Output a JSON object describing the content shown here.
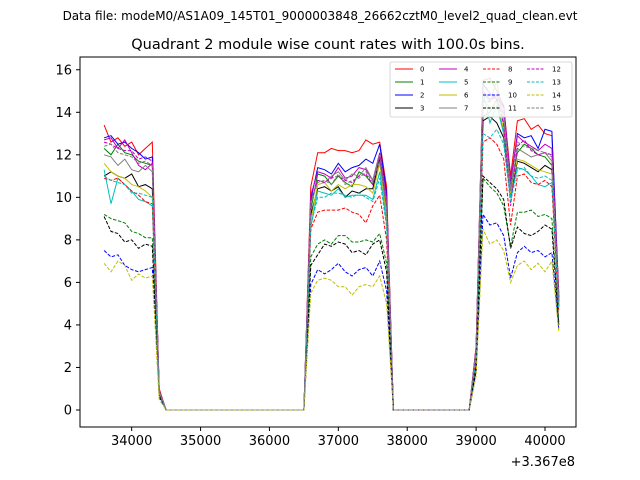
{
  "figure": {
    "suptitle": "Data file: modeM0/AS1A09_145T01_9000003848_26662cztM0_level2_quad_clean.evt",
    "title": "Quadrant 2 module wise count rates with 100.0s bins.",
    "x_offset_label": "+3.367e8"
  },
  "chart_data": {
    "type": "line",
    "title": "Quadrant 2 module wise count rates with 100.0s bins.",
    "xlabel": "",
    "ylabel": "",
    "x_offset": "+3.367e8",
    "xlim": [
      33250,
      40450
    ],
    "ylim": [
      -0.8,
      16.6
    ],
    "xticks": [
      34000,
      35000,
      36000,
      37000,
      38000,
      39000,
      40000
    ],
    "yticks": [
      0,
      2,
      4,
      6,
      8,
      10,
      12,
      14,
      16
    ],
    "grid": false,
    "legend": {
      "placement": "top-right",
      "columns": 4
    },
    "x": [
      33600,
      33700,
      33800,
      33900,
      34000,
      34100,
      34200,
      34300,
      34400,
      34500,
      34600,
      34700,
      34800,
      34900,
      35000,
      35100,
      35200,
      35300,
      35400,
      35500,
      35600,
      35700,
      35800,
      35900,
      36000,
      36100,
      36200,
      36300,
      36400,
      36500,
      36600,
      36700,
      36800,
      36900,
      37000,
      37100,
      37200,
      37300,
      37400,
      37500,
      37600,
      37700,
      37800,
      37900,
      38000,
      38100,
      38200,
      38300,
      38400,
      38500,
      38600,
      38700,
      38800,
      38900,
      39000,
      39100,
      39200,
      39300,
      39400,
      39500,
      39600,
      39700,
      39800,
      39900,
      40000,
      40100,
      40200
    ],
    "series": [
      {
        "name": "0",
        "color": "#ff0000",
        "dash": false,
        "values": [
          13.4,
          12.6,
          12.8,
          12.4,
          12.6,
          12.0,
          12.3,
          12.6,
          1.0,
          0,
          0,
          0,
          0,
          0,
          0,
          0,
          0,
          0,
          0,
          0,
          0,
          0,
          0,
          0,
          0,
          0,
          0,
          0,
          0,
          0,
          10.5,
          12.1,
          12.1,
          12.3,
          12.2,
          12.2,
          12.1,
          12.2,
          12.7,
          12.5,
          12.6,
          10.5,
          0,
          0,
          0,
          0,
          0,
          0,
          0,
          0,
          0,
          0,
          0,
          0,
          3.0,
          15.5,
          15.6,
          15.0,
          14.3,
          11.0,
          13.6,
          13.7,
          13.2,
          13.4,
          13.0,
          12.9,
          5.5
        ]
      },
      {
        "name": "1",
        "color": "#008000",
        "dash": false,
        "values": [
          12.3,
          12.0,
          12.5,
          12.1,
          12.0,
          11.7,
          11.6,
          11.5,
          0.9,
          0,
          0,
          0,
          0,
          0,
          0,
          0,
          0,
          0,
          0,
          0,
          0,
          0,
          0,
          0,
          0,
          0,
          0,
          0,
          0,
          0,
          9.4,
          11.1,
          11.0,
          10.6,
          11.0,
          10.7,
          10.5,
          11.2,
          11.0,
          10.6,
          12.0,
          9.5,
          0,
          0,
          0,
          0,
          0,
          0,
          0,
          0,
          0,
          0,
          0,
          0,
          2.8,
          13.8,
          14.0,
          14.6,
          13.0,
          10.4,
          12.1,
          12.5,
          12.3,
          12.0,
          11.9,
          11.5,
          5.2
        ]
      },
      {
        "name": "2",
        "color": "#0000ff",
        "dash": false,
        "values": [
          12.8,
          12.9,
          12.5,
          12.6,
          12.3,
          12.1,
          11.8,
          11.9,
          0.9,
          0,
          0,
          0,
          0,
          0,
          0,
          0,
          0,
          0,
          0,
          0,
          0,
          0,
          0,
          0,
          0,
          0,
          0,
          0,
          0,
          0,
          9.9,
          11.4,
          11.3,
          11.1,
          11.6,
          11.2,
          11.4,
          11.5,
          11.8,
          11.6,
          12.5,
          10.2,
          0,
          0,
          0,
          0,
          0,
          0,
          0,
          0,
          0,
          0,
          0,
          0,
          2.9,
          15.3,
          14.9,
          14.6,
          14.3,
          10.6,
          13.0,
          12.8,
          12.9,
          12.3,
          13.2,
          13.1,
          5.3
        ]
      },
      {
        "name": "3",
        "color": "#000000",
        "dash": false,
        "values": [
          11.0,
          11.2,
          11.0,
          10.9,
          11.1,
          10.5,
          10.6,
          10.4,
          0.8,
          0,
          0,
          0,
          0,
          0,
          0,
          0,
          0,
          0,
          0,
          0,
          0,
          0,
          0,
          0,
          0,
          0,
          0,
          0,
          0,
          0,
          9.2,
          10.4,
          10.5,
          10.3,
          10.5,
          10.0,
          10.3,
          10.2,
          10.4,
          10.4,
          11.8,
          9.0,
          0,
          0,
          0,
          0,
          0,
          0,
          0,
          0,
          0,
          0,
          0,
          0,
          2.6,
          13.6,
          13.8,
          13.5,
          12.8,
          10.0,
          11.7,
          11.6,
          11.4,
          11.2,
          11.5,
          11.3,
          4.9
        ]
      },
      {
        "name": "4",
        "color": "#bf00bf",
        "dash": false,
        "values": [
          12.7,
          12.8,
          12.3,
          12.7,
          12.1,
          11.5,
          11.3,
          11.6,
          0.9,
          0,
          0,
          0,
          0,
          0,
          0,
          0,
          0,
          0,
          0,
          0,
          0,
          0,
          0,
          0,
          0,
          0,
          0,
          0,
          0,
          0,
          10.1,
          11.2,
          11.1,
          10.9,
          11.4,
          10.9,
          11.0,
          11.4,
          11.3,
          10.8,
          12.1,
          10.0,
          0,
          0,
          0,
          0,
          0,
          0,
          0,
          0,
          0,
          0,
          0,
          0,
          2.9,
          15.0,
          14.6,
          14.8,
          14.2,
          10.8,
          12.9,
          12.6,
          12.4,
          12.2,
          12.5,
          12.3,
          5.3
        ]
      },
      {
        "name": "5",
        "color": "#00bfbf",
        "dash": false,
        "values": [
          11.3,
          9.7,
          10.9,
          10.6,
          10.3,
          9.9,
          9.8,
          9.6,
          0.8,
          0,
          0,
          0,
          0,
          0,
          0,
          0,
          0,
          0,
          0,
          0,
          0,
          0,
          0,
          0,
          0,
          0,
          0,
          0,
          0,
          0,
          8.6,
          10.3,
          10.2,
          10.1,
          10.4,
          10.0,
          10.1,
          10.1,
          10.1,
          9.9,
          11.2,
          8.8,
          0,
          0,
          0,
          0,
          0,
          0,
          0,
          0,
          0,
          0,
          0,
          0,
          2.5,
          15.0,
          13.5,
          14.3,
          13.0,
          10.0,
          11.4,
          11.3,
          11.0,
          10.6,
          10.5,
          10.7,
          4.8
        ]
      },
      {
        "name": "6",
        "color": "#bfbf00",
        "dash": false,
        "values": [
          11.6,
          11.2,
          11.0,
          10.9,
          10.6,
          10.5,
          10.3,
          10.0,
          0.8,
          0,
          0,
          0,
          0,
          0,
          0,
          0,
          0,
          0,
          0,
          0,
          0,
          0,
          0,
          0,
          0,
          0,
          0,
          0,
          0,
          0,
          8.9,
          10.6,
          10.7,
          10.3,
          10.6,
          10.4,
          10.6,
          10.6,
          10.5,
          10.2,
          11.6,
          9.1,
          0,
          0,
          0,
          0,
          0,
          0,
          0,
          0,
          0,
          0,
          0,
          0,
          2.7,
          14.6,
          14.2,
          14.5,
          13.2,
          10.2,
          11.8,
          11.7,
          11.5,
          11.3,
          11.2,
          11.1,
          5.0
        ]
      },
      {
        "name": "7",
        "color": "#808080",
        "dash": false,
        "values": [
          12.0,
          11.9,
          11.5,
          11.8,
          11.3,
          11.2,
          11.5,
          11.2,
          0.9,
          0,
          0,
          0,
          0,
          0,
          0,
          0,
          0,
          0,
          0,
          0,
          0,
          0,
          0,
          0,
          0,
          0,
          0,
          0,
          0,
          0,
          9.8,
          10.8,
          10.7,
          11.0,
          11.2,
          10.8,
          11.1,
          11.0,
          11.4,
          10.8,
          12.0,
          9.7,
          0,
          0,
          0,
          0,
          0,
          0,
          0,
          0,
          0,
          0,
          0,
          0,
          2.8,
          14.9,
          14.5,
          15.5,
          13.5,
          10.3,
          12.3,
          12.1,
          11.9,
          12.0,
          12.1,
          11.7,
          5.1
        ]
      },
      {
        "name": "8",
        "color": "#ff0000",
        "dash": true,
        "values": [
          10.9,
          10.8,
          10.9,
          10.6,
          10.3,
          10.1,
          9.8,
          9.7,
          0.8,
          0,
          0,
          0,
          0,
          0,
          0,
          0,
          0,
          0,
          0,
          0,
          0,
          0,
          0,
          0,
          0,
          0,
          0,
          0,
          0,
          0,
          8.5,
          9.3,
          9.4,
          9.4,
          9.4,
          9.5,
          9.3,
          9.2,
          8.8,
          9.6,
          10.1,
          8.0,
          0,
          0,
          0,
          0,
          0,
          0,
          0,
          0,
          0,
          0,
          0,
          0,
          2.4,
          12.6,
          12.8,
          12.5,
          11.8,
          8.7,
          11.0,
          11.1,
          10.7,
          10.6,
          10.8,
          10.5,
          4.6
        ]
      },
      {
        "name": "9",
        "color": "#008000",
        "dash": true,
        "values": [
          9.2,
          9.0,
          8.9,
          8.8,
          8.4,
          8.3,
          8.1,
          8.1,
          0.7,
          0,
          0,
          0,
          0,
          0,
          0,
          0,
          0,
          0,
          0,
          0,
          0,
          0,
          0,
          0,
          0,
          0,
          0,
          0,
          0,
          0,
          7.2,
          7.8,
          8.0,
          7.8,
          8.2,
          8.2,
          7.9,
          7.9,
          8.0,
          7.9,
          8.3,
          6.9,
          0,
          0,
          0,
          0,
          0,
          0,
          0,
          0,
          0,
          0,
          0,
          0,
          2.1,
          10.9,
          10.5,
          10.2,
          9.6,
          7.7,
          9.3,
          9.3,
          9.4,
          9.1,
          9.2,
          9.0,
          4.1
        ]
      },
      {
        "name": "10",
        "color": "#0000ff",
        "dash": true,
        "values": [
          7.5,
          7.2,
          7.3,
          6.8,
          6.6,
          6.5,
          6.6,
          6.7,
          0.6,
          0,
          0,
          0,
          0,
          0,
          0,
          0,
          0,
          0,
          0,
          0,
          0,
          0,
          0,
          0,
          0,
          0,
          0,
          0,
          0,
          0,
          5.9,
          6.6,
          6.4,
          6.6,
          6.9,
          6.5,
          6.3,
          6.6,
          6.7,
          6.3,
          7.0,
          5.6,
          0,
          0,
          0,
          0,
          0,
          0,
          0,
          0,
          0,
          0,
          0,
          0,
          1.8,
          9.2,
          8.7,
          8.8,
          8.2,
          6.2,
          7.4,
          7.7,
          7.4,
          7.5,
          7.2,
          7.4,
          3.8
        ]
      },
      {
        "name": "11",
        "color": "#000000",
        "dash": true,
        "values": [
          9.1,
          8.4,
          8.3,
          7.9,
          8.0,
          7.6,
          7.8,
          7.7,
          0.7,
          0,
          0,
          0,
          0,
          0,
          0,
          0,
          0,
          0,
          0,
          0,
          0,
          0,
          0,
          0,
          0,
          0,
          0,
          0,
          0,
          0,
          6.8,
          7.3,
          7.8,
          7.7,
          7.9,
          7.8,
          7.4,
          7.5,
          7.3,
          7.8,
          8.0,
          6.5,
          0,
          0,
          0,
          0,
          0,
          0,
          0,
          0,
          0,
          0,
          0,
          0,
          2.0,
          11.0,
          10.7,
          10.4,
          9.9,
          7.6,
          8.6,
          8.3,
          8.2,
          8.4,
          8.7,
          8.5,
          4.0
        ]
      },
      {
        "name": "12",
        "color": "#bf00bf",
        "dash": true,
        "values": [
          12.6,
          12.5,
          12.3,
          12.2,
          12.2,
          11.8,
          11.9,
          11.7,
          0.9,
          0,
          0,
          0,
          0,
          0,
          0,
          0,
          0,
          0,
          0,
          0,
          0,
          0,
          0,
          0,
          0,
          0,
          0,
          0,
          0,
          0,
          9.8,
          10.8,
          10.7,
          10.9,
          11.0,
          10.8,
          10.7,
          11.0,
          11.1,
          10.6,
          11.9,
          9.6,
          0,
          0,
          0,
          0,
          0,
          0,
          0,
          0,
          0,
          0,
          0,
          0,
          2.8,
          14.5,
          14.5,
          14.8,
          13.4,
          9.6,
          12.4,
          12.7,
          12.2,
          12.0,
          12.1,
          12.0,
          5.1
        ]
      },
      {
        "name": "13",
        "color": "#00bfbf",
        "dash": true,
        "values": [
          11.0,
          10.8,
          10.7,
          10.6,
          10.2,
          10.2,
          10.1,
          10.0,
          0.8,
          0,
          0,
          0,
          0,
          0,
          0,
          0,
          0,
          0,
          0,
          0,
          0,
          0,
          0,
          0,
          0,
          0,
          0,
          0,
          0,
          0,
          8.7,
          10.0,
          10.0,
          10.2,
          10.2,
          10.1,
          10.0,
          10.2,
          10.0,
          9.8,
          10.9,
          8.6,
          0,
          0,
          0,
          0,
          0,
          0,
          0,
          0,
          0,
          0,
          0,
          0,
          2.5,
          13.0,
          12.8,
          13.2,
          12.5,
          9.8,
          11.3,
          11.4,
          11.0,
          10.9,
          11.0,
          10.8,
          4.7
        ]
      },
      {
        "name": "14",
        "color": "#bfbf00",
        "dash": true,
        "values": [
          6.9,
          6.5,
          7.0,
          6.8,
          6.1,
          6.4,
          6.2,
          6.3,
          0.5,
          0,
          0,
          0,
          0,
          0,
          0,
          0,
          0,
          0,
          0,
          0,
          0,
          0,
          0,
          0,
          0,
          0,
          0,
          0,
          0,
          0,
          5.5,
          6.1,
          6.2,
          6.1,
          5.8,
          5.8,
          5.4,
          5.8,
          5.9,
          5.8,
          6.3,
          5.0,
          0,
          0,
          0,
          0,
          0,
          0,
          0,
          0,
          0,
          0,
          0,
          0,
          1.6,
          8.5,
          7.8,
          8.0,
          7.5,
          6.0,
          6.8,
          7.0,
          6.6,
          6.9,
          6.5,
          7.0,
          3.7
        ]
      },
      {
        "name": "15",
        "color": "#808080",
        "dash": true,
        "values": [
          12.4,
          12.5,
          12.1,
          12.0,
          11.9,
          11.6,
          11.7,
          11.5,
          0.9,
          0,
          0,
          0,
          0,
          0,
          0,
          0,
          0,
          0,
          0,
          0,
          0,
          0,
          0,
          0,
          0,
          0,
          0,
          0,
          0,
          0,
          9.7,
          10.7,
          10.8,
          10.6,
          11.1,
          10.6,
          10.8,
          10.9,
          11.2,
          10.7,
          11.7,
          9.4,
          0,
          0,
          0,
          0,
          0,
          0,
          0,
          0,
          0,
          0,
          0,
          0,
          2.8,
          15.4,
          14.9,
          14.8,
          13.9,
          10.5,
          12.6,
          12.4,
          12.3,
          12.2,
          12.1,
          11.9,
          5.2
        ]
      }
    ]
  }
}
